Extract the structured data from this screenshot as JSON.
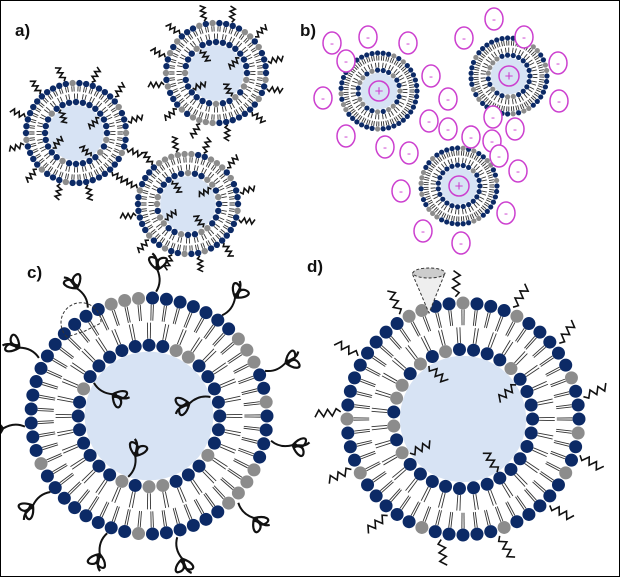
{
  "panels": {
    "a": {
      "label": "a)"
    },
    "b": {
      "label": "b)",
      "positive_sign": "+",
      "negative_sign": "-"
    },
    "c": {
      "label": "c)"
    },
    "d": {
      "label": "d)"
    }
  },
  "colors": {
    "head_primary": "#0c2a66",
    "head_secondary": "#8c8c8c",
    "core": "#d7e3f4",
    "tail": "#333333",
    "charge": "#cc3fcf",
    "ligand": "#111111"
  }
}
